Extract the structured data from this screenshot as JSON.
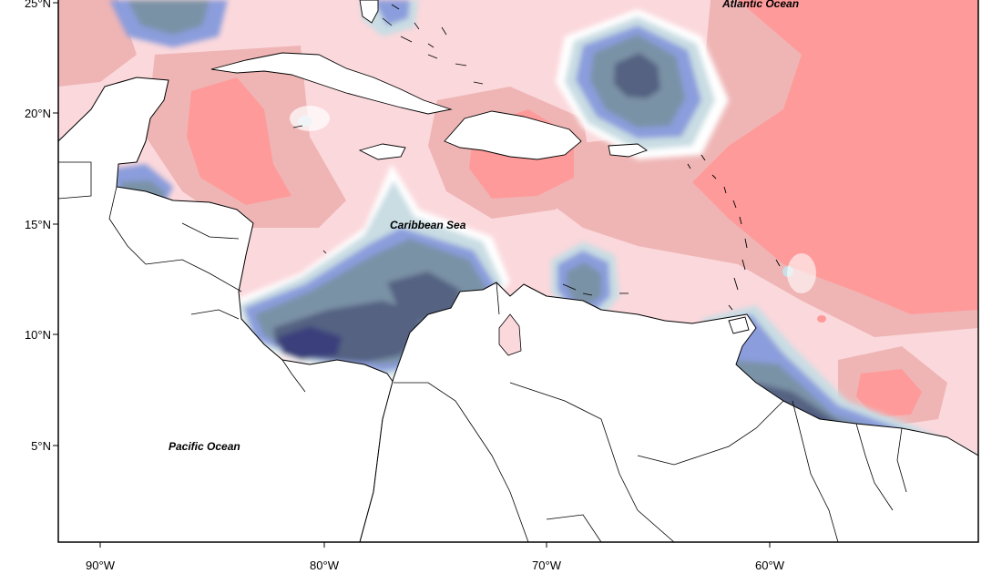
{
  "map": {
    "ocean_labels": {
      "atlantic": "Atlantic Ocean",
      "caribbean": "Caribbean Sea",
      "pacific": "Pacific Ocean"
    },
    "lat_ticks": [
      "25°N",
      "20°N",
      "15°N",
      "10°N",
      "5°N"
    ],
    "lon_ticks": [
      "90°W",
      "80°W",
      "70°W",
      "60°W"
    ],
    "colors": {
      "pos3": "#ff9a9a",
      "pos2": "#efb5b5",
      "pos1": "#fbd8dc",
      "zero": "#ffffff",
      "neg1": "#c9dde3",
      "neg2": "#8b9ddc",
      "neg3": "#7a92a6",
      "neg4": "#556282",
      "neg5": "#3b3f7c",
      "land": "#ffffff"
    }
  }
}
